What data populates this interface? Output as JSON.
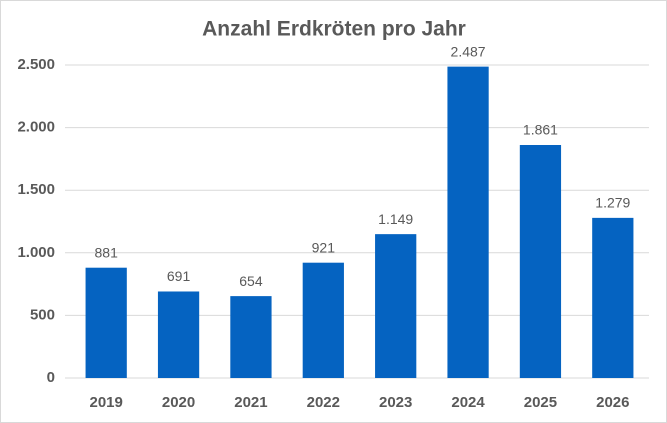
{
  "chart_data": {
    "type": "bar",
    "title": "Anzahl Erdkröten pro Jahr",
    "categories": [
      "2019",
      "2020",
      "2021",
      "2022",
      "2023",
      "2024",
      "2025",
      "2026"
    ],
    "values": [
      881,
      691,
      654,
      921,
      1149,
      2487,
      1861,
      1279
    ],
    "value_labels": [
      "881",
      "691",
      "654",
      "921",
      "1.149",
      "2.487",
      "1.861",
      "1.279"
    ],
    "color": "#0563c1",
    "ylim": [
      0,
      2500
    ],
    "yticks": [
      0,
      500,
      {
        "value": 1000,
        "label": "1.000"
      },
      {
        "value": 1500,
        "label": "1.500"
      },
      {
        "value": 2000,
        "label": "2.000"
      },
      {
        "value": 2500,
        "label": "2.500"
      }
    ],
    "grid": true
  }
}
